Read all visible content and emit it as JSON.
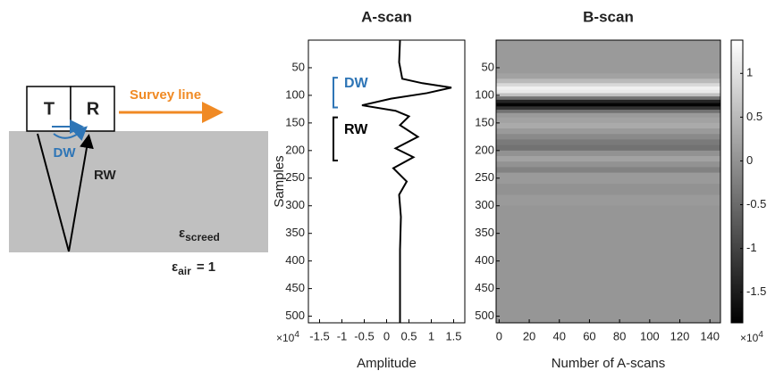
{
  "diagram": {
    "transmitter": "T",
    "receiver": "R",
    "survey_line": "Survey line",
    "direct_wave": "DW",
    "reflected_wave": "RW",
    "screed_permittivity": {
      "symbol": "ε",
      "subscript": "screed"
    },
    "air_permittivity": {
      "symbol": "ε",
      "subscript": "air",
      "value": "= 1"
    }
  },
  "chart_data": [
    {
      "type": "line",
      "title": "A-scan",
      "xlabel": "Amplitude",
      "ylabel": "Samples",
      "color": "#000000",
      "x_multiplier": {
        "base": "×10",
        "exponent": "4"
      },
      "samples": [
        0,
        40,
        70,
        78,
        86,
        96,
        106,
        118,
        128,
        138,
        154,
        175,
        196,
        212,
        232,
        256,
        280,
        320,
        380,
        440,
        512
      ],
      "values": [
        0.3,
        0.28,
        0.35,
        0.8,
        1.45,
        0.9,
        0.1,
        -0.55,
        0.2,
        0.5,
        0.3,
        0.7,
        0.2,
        0.6,
        0.15,
        0.45,
        0.28,
        0.32,
        0.3,
        0.3,
        0.3
      ],
      "xlim": [
        -1.75,
        1.75
      ],
      "xticks": [
        -1.5,
        -1,
        -0.5,
        0,
        0.5,
        1,
        1.5
      ],
      "ylim": [
        0,
        512
      ],
      "yticks": [
        50,
        100,
        150,
        200,
        250,
        300,
        350,
        400,
        450,
        500
      ],
      "annotations": [
        {
          "text": "DW",
          "color": "#2e75b6",
          "range": [
            68,
            122
          ]
        },
        {
          "text": "RW",
          "color": "#000000",
          "range": [
            140,
            218
          ]
        }
      ]
    },
    {
      "type": "heatmap",
      "title": "B-scan",
      "xlabel": "Number of A-scans",
      "y_edges": [
        0,
        20,
        40,
        60,
        70,
        78,
        84,
        90,
        96,
        102,
        108,
        114,
        120,
        126,
        132,
        140,
        150,
        160,
        170,
        180,
        190,
        200,
        210,
        220,
        230,
        240,
        260,
        280,
        300,
        350,
        400,
        450,
        512
      ],
      "values": [
        0.1,
        0.1,
        0.1,
        0.2,
        0.5,
        0.9,
        1.2,
        1.1,
        0.6,
        -0.4,
        -1.4,
        -1.8,
        -1.2,
        -0.4,
        0.1,
        0.2,
        0.3,
        0.1,
        -0.1,
        -0.3,
        -0.4,
        0.0,
        0.2,
        0.0,
        -0.2,
        0.1,
        0.0,
        0.1,
        0.05,
        0.05,
        0.05,
        0.05
      ],
      "xlim": [
        -2,
        147
      ],
      "xticks": [
        0,
        20,
        40,
        60,
        80,
        100,
        120,
        140
      ],
      "ylim": [
        0,
        512
      ],
      "yticks": [
        50,
        100,
        150,
        200,
        250,
        300,
        350,
        400,
        450,
        500
      ],
      "clim": [
        -1.85,
        1.38
      ],
      "cticks": [
        1,
        0.5,
        0,
        -0.5,
        -1,
        -1.5
      ],
      "c_multiplier": {
        "base": "×10",
        "exponent": "4"
      }
    }
  ]
}
